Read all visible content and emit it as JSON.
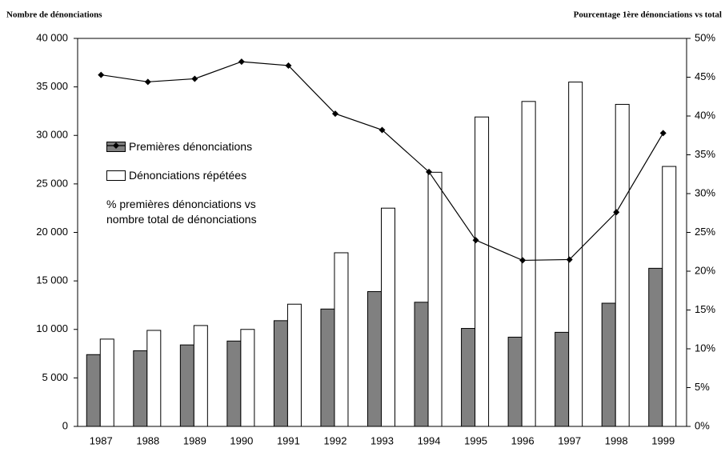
{
  "chart_data": {
    "type": "bar",
    "ylabel": "Nombre de dénonciations",
    "y2label": "Pourcentage 1ère dénonciations vs total",
    "categories": [
      "1987",
      "1988",
      "1989",
      "1990",
      "1991",
      "1992",
      "1993",
      "1994",
      "1995",
      "1996",
      "1997",
      "1998",
      "1999"
    ],
    "series": [
      {
        "name": "Premières dénonciations",
        "color": "#808080",
        "type": "bar",
        "values": [
          7400,
          7800,
          8400,
          8800,
          10900,
          12100,
          13900,
          12800,
          10100,
          9200,
          9700,
          12700,
          16300
        ]
      },
      {
        "name": "Dénonciations répétées",
        "color": "#ffffff",
        "type": "bar",
        "values": [
          9000,
          9900,
          10400,
          10000,
          12600,
          17900,
          22500,
          26200,
          31900,
          33500,
          35500,
          33200,
          26800
        ]
      },
      {
        "name": "% premières dénonciations vs nombre total de dénonciations",
        "color": "#000000",
        "type": "line",
        "axis": "y2",
        "values": [
          45.3,
          44.4,
          44.8,
          47.0,
          46.5,
          40.3,
          38.2,
          32.8,
          24.0,
          21.4,
          21.5,
          27.6,
          37.8
        ]
      }
    ],
    "ylim": [
      0,
      40000
    ],
    "yticks": [
      0,
      {
        "value": 5000,
        "label": "5 000"
      },
      {
        "value": 10000,
        "label": "10 000"
      },
      {
        "value": 15000,
        "label": "15 000"
      },
      {
        "value": 20000,
        "label": "20 000"
      },
      {
        "value": 25000,
        "label": "25 000"
      },
      {
        "value": 30000,
        "label": "30 000"
      },
      {
        "value": 35000,
        "label": "35 000"
      },
      {
        "value": 40000,
        "label": "40 000"
      }
    ],
    "y2lim": [
      0,
      50
    ],
    "y2ticks": [
      {
        "value": 0,
        "label": "0%"
      },
      {
        "value": 5,
        "label": "5%"
      },
      {
        "value": 10,
        "label": "10%"
      },
      {
        "value": 15,
        "label": "15%"
      },
      {
        "value": 20,
        "label": "20%"
      },
      {
        "value": 25,
        "label": "25%"
      },
      {
        "value": 30,
        "label": "30%"
      },
      {
        "value": 35,
        "label": "35%"
      },
      {
        "value": 40,
        "label": "40%"
      },
      {
        "value": 45,
        "label": "45%"
      },
      {
        "value": 50,
        "label": "50%"
      }
    ],
    "grid": false
  }
}
